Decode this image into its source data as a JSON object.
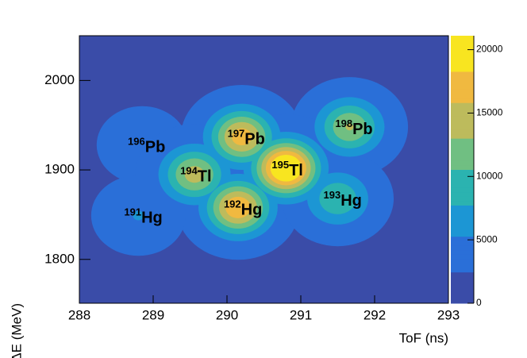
{
  "chart_data": {
    "type": "heatmap",
    "x_label": "ToF (ns)",
    "y_label": "ΔE (MeV)",
    "xlim": [
      288,
      293
    ],
    "xticks": [
      288,
      289,
      290,
      291,
      292,
      293
    ],
    "ylim": [
      1751,
      2050
    ],
    "yticks": [
      1800,
      1900,
      2000
    ],
    "zlim": [
      0,
      21100
    ],
    "zticks": [
      0,
      5000,
      10000,
      15000,
      20000
    ],
    "palette": [
      "#3a4ca8",
      "#2a6fd8",
      "#1c96d4",
      "#2bb3b0",
      "#70bf82",
      "#bdbb5c",
      "#f0b940",
      "#f8e520"
    ],
    "peaks": [
      {
        "mass": "196",
        "element": "Pb",
        "x": 288.85,
        "y": 1928,
        "z": 2500
      },
      {
        "mass": "197",
        "element": "Pb",
        "x": 290.2,
        "y": 1937,
        "z": 15000
      },
      {
        "mass": "198",
        "element": "Pb",
        "x": 291.66,
        "y": 1948,
        "z": 11000
      },
      {
        "mass": "194",
        "element": "Tl",
        "x": 289.56,
        "y": 1895,
        "z": 12000
      },
      {
        "mass": "195",
        "element": "Tl",
        "x": 290.8,
        "y": 1902,
        "z": 21000
      },
      {
        "mass": "192",
        "element": "Hg",
        "x": 290.15,
        "y": 1858,
        "z": 16000
      },
      {
        "mass": "193",
        "element": "Hg",
        "x": 291.5,
        "y": 1868,
        "z": 8000
      },
      {
        "mass": "191",
        "element": "Hg",
        "x": 288.8,
        "y": 1849,
        "z": 3000
      }
    ]
  }
}
